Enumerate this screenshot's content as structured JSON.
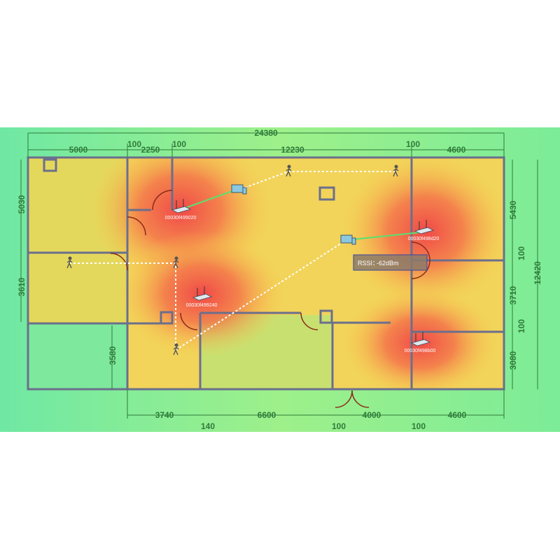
{
  "colors": {
    "strong": "#f0504a",
    "medium": "#f8c84c",
    "weak": "#6fe8a4",
    "wall": "#6b6f8c",
    "dimension": "#2f7a3a",
    "link": "#5ce070"
  },
  "dimensions": {
    "top": [
      "24380",
      "5000",
      "100",
      "2250",
      "100",
      "12230",
      "100",
      "4600"
    ],
    "right": [
      "5430",
      "100",
      "12420",
      "3710",
      "100",
      "3080"
    ],
    "left": [
      "5030",
      "3610",
      "3580"
    ],
    "bottom": [
      "3740",
      "140",
      "6600",
      "100",
      "4000",
      "100",
      "4600"
    ]
  },
  "access_points": [
    {
      "label": "00030f499020",
      "icon": "router-icon"
    },
    {
      "label": "00030f498d20",
      "icon": "router-icon"
    },
    {
      "label": "00030f499240",
      "icon": "router-icon"
    },
    {
      "label": "00030f498b00",
      "icon": "router-icon"
    }
  ],
  "clients": [
    {
      "icon": "laptop-phone-icon"
    },
    {
      "icon": "laptop-phone-icon"
    }
  ],
  "persons": [
    {
      "icon": "walking-person-icon"
    },
    {
      "icon": "walking-person-icon"
    },
    {
      "icon": "walking-person-icon"
    },
    {
      "icon": "walking-person-icon"
    },
    {
      "icon": "walking-person-icon"
    }
  ],
  "rssi": {
    "label": "RSSI：",
    "value": "-62dBm"
  }
}
